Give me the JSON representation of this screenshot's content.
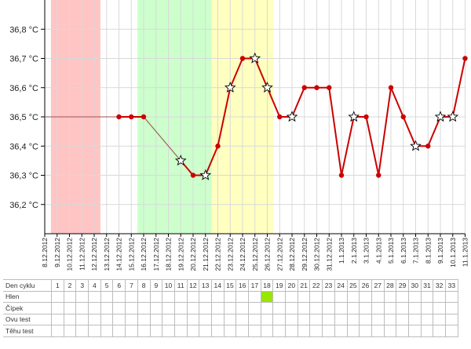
{
  "chart_data": {
    "type": "line",
    "title": "",
    "xlabel": "",
    "ylabel": "",
    "ylim": [
      36.1,
      36.9
    ],
    "yticks": [
      36.2,
      36.3,
      36.4,
      36.5,
      36.6,
      36.7,
      36.8
    ],
    "ytick_labels": [
      "36,2 °C",
      "36,3 °C",
      "36,4 °C",
      "36,5 °C",
      "36,6 °C",
      "36,7 °C",
      "36,8 °C"
    ],
    "x": [
      "8.12.2012",
      "9.12.2012",
      "10.12.2012",
      "11.12.2012",
      "12.12.2012",
      "13.12.2012",
      "14.12.2012",
      "15.12.2012",
      "16.12.2012",
      "17.12.2012",
      "18.12.2012",
      "19.12.2012",
      "20.12.2012",
      "21.12.2012",
      "22.12.2012",
      "23.12.2012",
      "24.12.2012",
      "25.12.2012",
      "26.12.2012",
      "27.12.2012",
      "28.12.2012",
      "29.12.2012",
      "30.12.2012",
      "31.12.2012",
      "1.1.2013",
      "2.1.2013",
      "3.1.2013",
      "4.1.2013",
      "5.1.2013",
      "6.1.2013",
      "7.1.2013",
      "8.1.2013",
      "9.1.2013",
      "10.1.2013",
      "11.1.2013"
    ],
    "series": [
      {
        "values": [
          36.5,
          null,
          null,
          null,
          null,
          null,
          36.5,
          36.5,
          36.5,
          null,
          null,
          36.35,
          36.3,
          36.3,
          36.4,
          36.6,
          36.7,
          36.7,
          36.6,
          36.5,
          36.5,
          36.6,
          36.6,
          36.6,
          36.3,
          36.5,
          36.5,
          36.3,
          36.6,
          36.5,
          36.4,
          36.4,
          36.5,
          36.5,
          36.7
        ],
        "markers": [
          "none",
          "none",
          "none",
          "none",
          "none",
          "none",
          "dot",
          "dot",
          "dot",
          "none",
          "none",
          "star",
          "dot",
          "star",
          "dot",
          "star",
          "dot",
          "star",
          "star",
          "dot",
          "star",
          "dot",
          "dot",
          "dot",
          "dot",
          "star",
          "dot",
          "dot",
          "dot",
          "dot",
          "star",
          "dot",
          "star",
          "star",
          "dot"
        ],
        "color": "#cc0000"
      }
    ],
    "shaded_regions": [
      {
        "from_index": 0.5,
        "to_index": 4.5,
        "color": "#ffc4c4"
      },
      {
        "from_index": 7.5,
        "to_index": 13.5,
        "color": "#ccffcc"
      },
      {
        "from_index": 13.5,
        "to_index": 18.5,
        "color": "#ffffc0"
      }
    ],
    "grid": true,
    "legend": "none"
  },
  "table": {
    "header_label": "Den cyklu",
    "days": [
      "1",
      "2",
      "3",
      "4",
      "5",
      "6",
      "7",
      "8",
      "9",
      "10",
      "11",
      "12",
      "13",
      "14",
      "15",
      "16",
      "17",
      "18",
      "19",
      "20",
      "21",
      "22",
      "23",
      "24",
      "25",
      "26",
      "27",
      "28",
      "29",
      "30",
      "31",
      "32",
      "33"
    ],
    "rows": [
      {
        "label": "Hlen",
        "marked_days": [
          "18"
        ]
      },
      {
        "label": "Čípek",
        "marked_days": []
      },
      {
        "label": "Ovu test",
        "marked_days": []
      },
      {
        "label": "Těhu test",
        "marked_days": []
      }
    ],
    "mark_color": "#99e600"
  }
}
